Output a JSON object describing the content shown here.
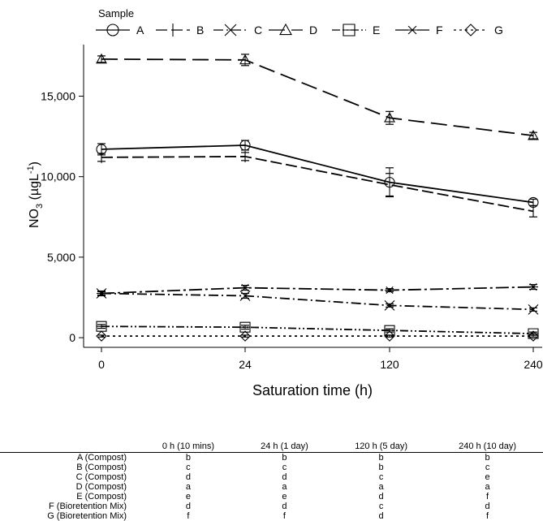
{
  "chart_data": {
    "type": "line",
    "legend_title": "Sample",
    "legend_position": "top",
    "xlabel": "Saturation time (h)",
    "ylabel": "NO3 (µgL-1)",
    "ylabel_parts": {
      "base": "NO",
      "sub": "3",
      "mid": " (µgL",
      "sup": "-1",
      "end": ")"
    },
    "x": [
      0,
      24,
      120,
      240
    ],
    "x_tick_labels": [
      "0",
      "24",
      "120",
      "240"
    ],
    "y_ticks": [
      0,
      5000,
      10000,
      15000
    ],
    "y_tick_labels": [
      "0",
      "5,000",
      "10,000",
      "15,000"
    ],
    "ylim": [
      -600,
      18200
    ],
    "grid": false,
    "series": [
      {
        "name": "A",
        "marker": "circle",
        "dash": "solid",
        "values": [
          11700,
          11950,
          9650,
          8400
        ],
        "errors": [
          350,
          300,
          900,
          200
        ]
      },
      {
        "name": "B",
        "marker": "vline",
        "dash": "long",
        "values": [
          11200,
          11250,
          9500,
          7850
        ],
        "errors": [
          250,
          250,
          700,
          350
        ]
      },
      {
        "name": "C",
        "marker": "x",
        "dash": "dashdot",
        "values": [
          2750,
          2600,
          2000,
          1750
        ],
        "errors": [
          150,
          150,
          100,
          100
        ]
      },
      {
        "name": "D",
        "marker": "triangle",
        "dash": "longdash",
        "values": [
          17300,
          17250,
          13650,
          12550
        ],
        "errors": [
          200,
          350,
          400,
          200
        ]
      },
      {
        "name": "E",
        "marker": "square",
        "dash": "dashdotdot",
        "values": [
          700,
          650,
          450,
          250
        ],
        "errors": [
          120,
          120,
          100,
          100
        ]
      },
      {
        "name": "F",
        "marker": "star",
        "dash": "longdashdot",
        "values": [
          2750,
          3100,
          2950,
          3150
        ],
        "errors": [
          100,
          150,
          100,
          150
        ]
      },
      {
        "name": "G",
        "marker": "diamond",
        "dash": "dotdot",
        "values": [
          100,
          100,
          100,
          100
        ],
        "errors": [
          60,
          60,
          60,
          60
        ]
      }
    ]
  },
  "table": {
    "columns": [
      "",
      "0 h (10 mins)",
      "24 h (1 day)",
      "120 h (5 day)",
      "240 h (10 day)"
    ],
    "rows": [
      {
        "label": "A (Compost)",
        "values": [
          "b",
          "b",
          "b",
          "b"
        ]
      },
      {
        "label": "B (Compost)",
        "values": [
          "c",
          "c",
          "b",
          "c"
        ]
      },
      {
        "label": "C (Compost)",
        "values": [
          "d",
          "d",
          "c",
          "e"
        ]
      },
      {
        "label": "D (Compost)",
        "values": [
          "a",
          "a",
          "a",
          "a"
        ]
      },
      {
        "label": "E (Compost)",
        "values": [
          "e",
          "e",
          "d",
          "f"
        ]
      },
      {
        "label": "F (Bioretention Mix)",
        "values": [
          "d",
          "d",
          "c",
          "d"
        ]
      },
      {
        "label": "G (Bioretention Mix)",
        "values": [
          "f",
          "f",
          "d",
          "f"
        ]
      }
    ]
  }
}
